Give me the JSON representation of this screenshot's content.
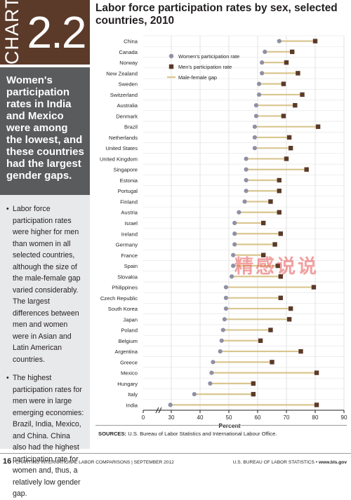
{
  "sidebar": {
    "chart_word": "CHART",
    "chart_number": "2.2",
    "headline": "Women's participation rates in India and Mexico were among the lowest, and these countries had the largest gender gaps.",
    "notes": [
      "Labor force participation rates were higher for men than women in all selected countries, although the size of the male-female gap varied considerably. The largest differences between men and women were in Asian and Latin American countries.",
      "The highest participation rates for men were in large emerging economies: Brazil, India, Mexico, and China. China also had the highest participation rate for women and, thus, a relatively low gender gap."
    ]
  },
  "source": {
    "label": "SOURCES:",
    "text": "U.S. Bureau of Labor Statistics and International Labour Office."
  },
  "footer": {
    "page_number": "16",
    "left_text": "CHARTING INTERNATIONAL LABOR COMPARISONS | SEPTEMBER 2012",
    "right_text": "U.S. BUREAU OF LABOR STATISTICS",
    "site": "www.bls.gov"
  },
  "watermark": "精感说说",
  "colors": {
    "women": "#8f90a6",
    "men": "#5b3a29",
    "gap": "#d9c68f",
    "grid": "#e3e3e3"
  },
  "chart_data": {
    "type": "dumbbell",
    "title": "Labor force participation rates by sex, selected countries, 2010",
    "xlabel": "Percent",
    "xlim": [
      0,
      90
    ],
    "x_axis_break": true,
    "xticks": [
      0,
      30,
      40,
      50,
      60,
      70,
      80,
      90
    ],
    "grid": true,
    "legend_position": "top-left",
    "legend": [
      "Women's participation rate",
      "Men's participation rate",
      "Male-female gap"
    ],
    "categories": [
      "China",
      "Canada",
      "Norway",
      "New Zealand",
      "Sweden",
      "Switzerland",
      "Australia",
      "Denmark",
      "Brazil",
      "Netherlands",
      "United States",
      "United Kingdom",
      "Singapore",
      "Estonia",
      "Portugal",
      "Finland",
      "Austria",
      "Israel",
      "Ireland",
      "Germany",
      "France",
      "Spain",
      "Slovakia",
      "Philippines",
      "Czech Republic",
      "South Korea",
      "Japan",
      "Poland",
      "Belgium",
      "Argentina",
      "Greece",
      "Mexico",
      "Hungary",
      "Italy",
      "India"
    ],
    "series": [
      {
        "name": "Women's participation rate",
        "values": [
          67.5,
          62.5,
          61.5,
          61.5,
          60.5,
          60.5,
          59.5,
          59.5,
          59,
          59,
          59,
          56,
          56,
          56,
          56,
          55.5,
          53.5,
          52,
          52,
          52,
          51.5,
          51.5,
          51,
          49,
          49,
          49,
          48.5,
          48,
          47.5,
          47,
          44.5,
          44,
          43.5,
          38,
          29
        ]
      },
      {
        "name": "Men's participation rate",
        "values": [
          80,
          72,
          70,
          74,
          69,
          75.5,
          73,
          69,
          81,
          71,
          71.5,
          70,
          77,
          67.5,
          67.5,
          64.5,
          67.5,
          62,
          68,
          66,
          62,
          67,
          68,
          79.5,
          68,
          71.5,
          71,
          64.5,
          61,
          75,
          65,
          80.5,
          58.5,
          58.5,
          80.5
        ]
      }
    ]
  }
}
